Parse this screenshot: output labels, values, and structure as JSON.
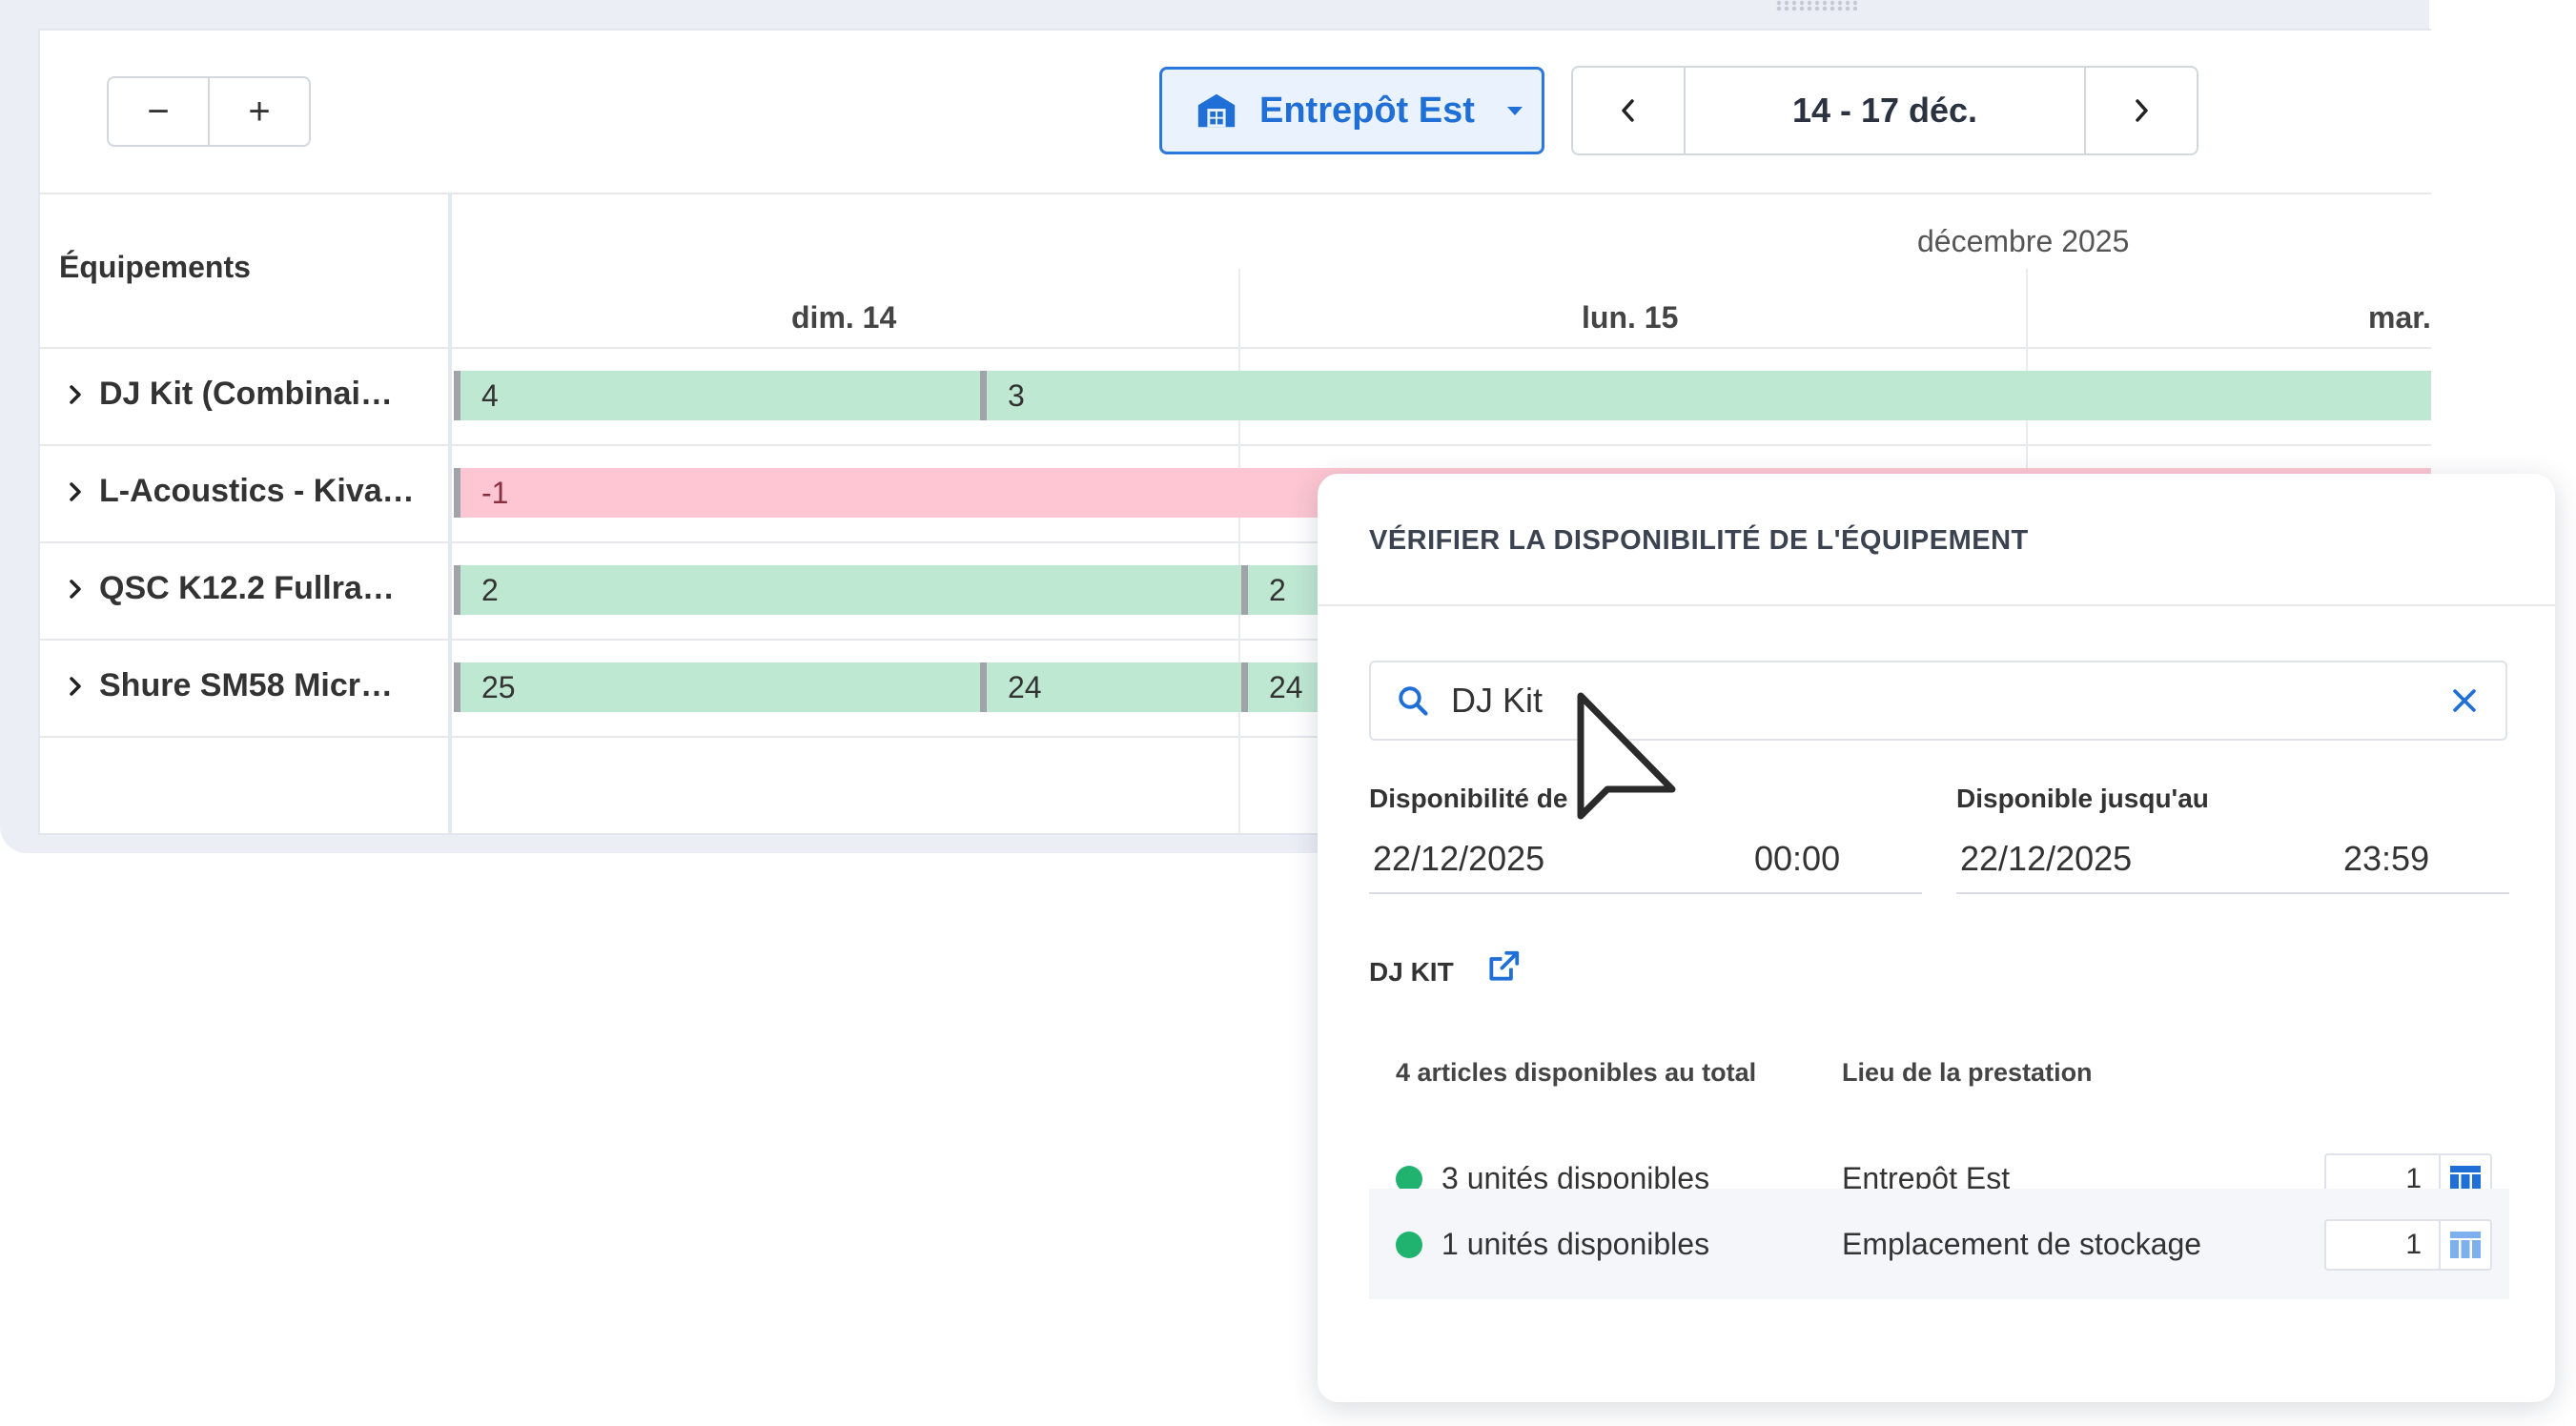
{
  "toolbar": {
    "zoom_out": "−",
    "zoom_in": "+",
    "warehouse": "Entrepôt Est",
    "date_range": "14 - 17 déc."
  },
  "grid": {
    "equipment_header": "Équipements",
    "month": "décembre 2025",
    "days": [
      "dim. 14",
      "lun. 15",
      "mar."
    ],
    "rows": [
      {
        "label": "DJ Kit (Combinai…",
        "bars": [
          "4",
          "3"
        ]
      },
      {
        "label": "L-Acoustics - Kiva…",
        "bars": [
          "-1"
        ]
      },
      {
        "label": "QSC K12.2 Fullra…",
        "bars": [
          "2",
          "2"
        ]
      },
      {
        "label": "Shure SM58 Micr…",
        "bars": [
          "25",
          "24",
          "24"
        ]
      }
    ]
  },
  "popup": {
    "title": "VÉRIFIER LA DISPONIBILITÉ DE L'ÉQUIPEMENT",
    "search_value": "DJ Kit",
    "from_label": "Disponibilité de",
    "from_date": "22/12/2025",
    "from_time": "00:00",
    "to_label": "Disponible jusqu'au",
    "to_date": "22/12/2025",
    "to_time": "23:59",
    "kit_title": "DJ KIT",
    "col_total": "4 articles disponibles au total",
    "col_location": "Lieu de la prestation",
    "rows": [
      {
        "units": "3 unités disponibles",
        "location": "Entrepôt Est",
        "qty": "1"
      },
      {
        "units": "1 unités disponibles",
        "location": "Emplacement de stockage",
        "qty": "1"
      }
    ]
  },
  "colors": {
    "accent": "#1f6fd6",
    "available_bar": "#bfe8d3",
    "shortage_bar": "#fdc6d2",
    "status_dot": "#20b26f"
  },
  "icons": [
    "warehouse-icon",
    "chevron-left-icon",
    "chevron-right-icon",
    "chevron-right-icon",
    "search-icon",
    "close-icon",
    "external-link-icon",
    "table-icon",
    "cursor-icon"
  ]
}
